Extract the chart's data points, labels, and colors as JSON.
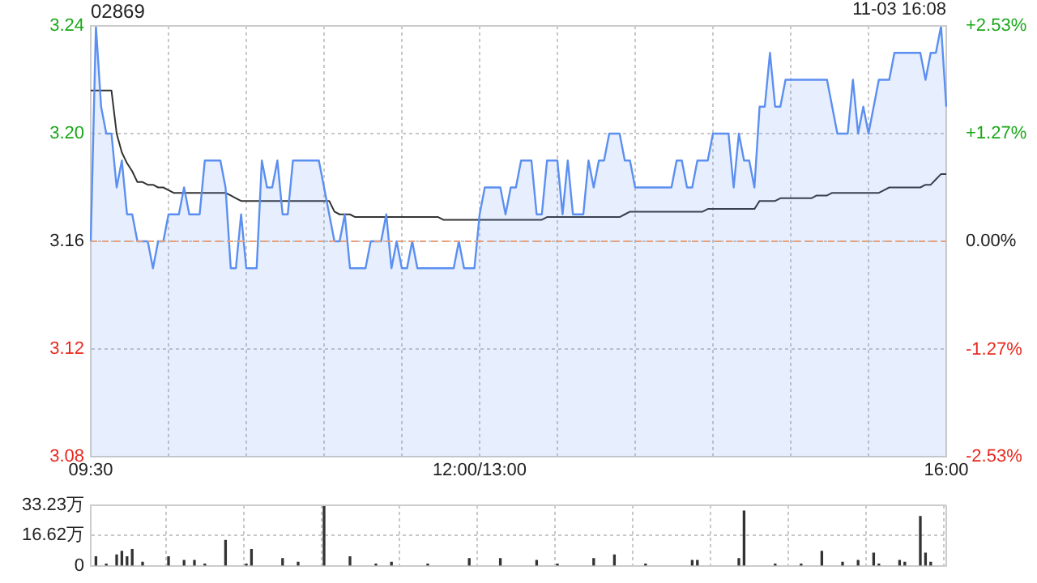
{
  "chart_data": [
    {
      "type": "area",
      "title": "02869",
      "annotations": [
        "11-03 16:08"
      ],
      "legend": false,
      "grid": true,
      "categories": [
        "09:30",
        null,
        null,
        null,
        null,
        null,
        null,
        null,
        null,
        null,
        null,
        null,
        null,
        null,
        null,
        null,
        null,
        null,
        null,
        null,
        null,
        null,
        null,
        null,
        null,
        null,
        null,
        null,
        null,
        null,
        null,
        null,
        null,
        null,
        null,
        null,
        null,
        null,
        null,
        null,
        null,
        null,
        null,
        null,
        null,
        null,
        null,
        null,
        null,
        null,
        null,
        null,
        null,
        null,
        null,
        null,
        null,
        null,
        null,
        null,
        null,
        null,
        null,
        null,
        null,
        null,
        null,
        null,
        null,
        null,
        null,
        null,
        null,
        null,
        null,
        "12:00/13:00",
        null,
        null,
        null,
        null,
        null,
        null,
        null,
        null,
        null,
        null,
        null,
        null,
        null,
        null,
        null,
        null,
        null,
        null,
        null,
        null,
        null,
        null,
        null,
        null,
        null,
        null,
        null,
        null,
        null,
        null,
        null,
        null,
        null,
        null,
        null,
        null,
        null,
        null,
        null,
        null,
        null,
        null,
        null,
        null,
        null,
        null,
        null,
        null,
        null,
        null,
        null,
        null,
        null,
        null,
        null,
        null,
        null,
        null,
        null,
        null,
        null,
        null,
        null,
        null,
        null,
        null,
        null,
        null,
        null,
        null,
        null,
        null,
        null,
        null,
        null,
        null,
        null,
        null,
        null,
        null,
        null,
        null,
        null,
        null,
        null,
        null,
        null,
        null,
        null,
        "16:00"
      ],
      "ylim": [
        3.08,
        3.24
      ],
      "yticks": [
        3.08,
        3.12,
        3.16,
        {
          "value": 3.2,
          "label": "3.20"
        },
        3.24
      ],
      "y2lim": [
        -2.53,
        2.53
      ],
      "y2ticks": [
        {
          "value": -2.53,
          "label": "-2.53%"
        },
        {
          "value": -1.27,
          "label": "-1.27%"
        },
        {
          "value": 0,
          "label": "0.00%"
        },
        {
          "value": 1.27,
          "label": "+1.27%"
        },
        {
          "value": 2.53,
          "label": "+2.53%"
        }
      ],
      "ref_lines": [
        {
          "axis": "y",
          "value": 3.16,
          "color": "#e8a07a",
          "line_style": "dashed"
        }
      ],
      "series": [
        {
          "type": "area",
          "color": "#5b8ff0",
          "values": [
            3.16,
            3.24,
            3.21,
            3.2,
            3.2,
            3.18,
            3.19,
            3.17,
            3.17,
            3.16,
            3.16,
            3.16,
            3.15,
            3.16,
            3.16,
            3.17,
            3.17,
            3.17,
            3.18,
            3.17,
            3.17,
            3.17,
            3.19,
            3.19,
            3.19,
            3.19,
            3.18,
            3.15,
            3.15,
            3.17,
            3.15,
            3.15,
            3.15,
            3.19,
            3.18,
            3.18,
            3.19,
            3.17,
            3.17,
            3.19,
            3.19,
            3.19,
            3.19,
            3.19,
            3.19,
            3.18,
            3.17,
            3.16,
            3.16,
            3.17,
            3.15,
            3.15,
            3.15,
            3.15,
            3.16,
            3.16,
            3.16,
            3.17,
            3.15,
            3.16,
            3.15,
            3.15,
            3.16,
            3.15,
            3.15,
            3.15,
            3.15,
            3.15,
            3.15,
            3.15,
            3.15,
            3.16,
            3.15,
            3.15,
            3.15,
            3.17,
            3.18,
            3.18,
            3.18,
            3.18,
            3.17,
            3.18,
            3.18,
            3.19,
            3.19,
            3.19,
            3.17,
            3.17,
            3.19,
            3.19,
            3.19,
            3.17,
            3.19,
            3.17,
            3.17,
            3.17,
            3.19,
            3.18,
            3.19,
            3.19,
            3.2,
            3.2,
            3.2,
            3.19,
            3.19,
            3.18,
            3.18,
            3.18,
            3.18,
            3.18,
            3.18,
            3.18,
            3.18,
            3.19,
            3.19,
            3.18,
            3.18,
            3.19,
            3.19,
            3.19,
            3.2,
            3.2,
            3.2,
            3.2,
            3.18,
            3.2,
            3.19,
            3.19,
            3.18,
            3.21,
            3.21,
            3.23,
            3.21,
            3.21,
            3.22,
            3.22,
            3.22,
            3.22,
            3.22,
            3.22,
            3.22,
            3.22,
            3.22,
            3.21,
            3.2,
            3.2,
            3.2,
            3.22,
            3.2,
            3.21,
            3.2,
            3.21,
            3.22,
            3.22,
            3.22,
            3.23,
            3.23,
            3.23,
            3.23,
            3.23,
            3.23,
            3.22,
            3.23,
            3.23,
            3.24,
            3.21
          ]
        },
        {
          "type": "line",
          "color": "#333333",
          "values": [
            3.216,
            3.216,
            3.216,
            3.216,
            3.216,
            3.2,
            3.193,
            3.189,
            3.186,
            3.182,
            3.182,
            3.181,
            3.181,
            3.18,
            3.18,
            3.179,
            3.178,
            3.178,
            3.178,
            3.178,
            3.178,
            3.178,
            3.178,
            3.178,
            3.178,
            3.178,
            3.178,
            3.177,
            3.176,
            3.175,
            3.175,
            3.175,
            3.175,
            3.175,
            3.175,
            3.175,
            3.175,
            3.175,
            3.175,
            3.175,
            3.175,
            3.175,
            3.175,
            3.175,
            3.175,
            3.175,
            3.175,
            3.171,
            3.17,
            3.17,
            3.17,
            3.169,
            3.169,
            3.169,
            3.169,
            3.169,
            3.169,
            3.169,
            3.169,
            3.169,
            3.169,
            3.169,
            3.169,
            3.169,
            3.169,
            3.169,
            3.169,
            3.169,
            3.168,
            3.168,
            3.168,
            3.168,
            3.168,
            3.168,
            3.168,
            3.168,
            3.168,
            3.168,
            3.168,
            3.168,
            3.168,
            3.168,
            3.168,
            3.168,
            3.168,
            3.168,
            3.168,
            3.168,
            3.169,
            3.169,
            3.169,
            3.169,
            3.169,
            3.169,
            3.169,
            3.169,
            3.169,
            3.169,
            3.169,
            3.169,
            3.169,
            3.169,
            3.169,
            3.17,
            3.171,
            3.171,
            3.171,
            3.171,
            3.171,
            3.171,
            3.171,
            3.171,
            3.171,
            3.171,
            3.171,
            3.171,
            3.171,
            3.171,
            3.171,
            3.172,
            3.172,
            3.172,
            3.172,
            3.172,
            3.172,
            3.172,
            3.172,
            3.172,
            3.172,
            3.175,
            3.175,
            3.175,
            3.175,
            3.176,
            3.176,
            3.176,
            3.176,
            3.176,
            3.176,
            3.176,
            3.177,
            3.177,
            3.177,
            3.178,
            3.178,
            3.178,
            3.178,
            3.178,
            3.178,
            3.178,
            3.178,
            3.178,
            3.178,
            3.179,
            3.18,
            3.18,
            3.18,
            3.18,
            3.18,
            3.18,
            3.18,
            3.181,
            3.181,
            3.183,
            3.185,
            3.185
          ]
        }
      ]
    },
    {
      "type": "bar",
      "grid": true,
      "legend": false,
      "tick_labels": "y",
      "categories": [
        null,
        null,
        null,
        null,
        null,
        null,
        null,
        null,
        null,
        null,
        null,
        null,
        null,
        null,
        null,
        null,
        null,
        null,
        null,
        null,
        null,
        null,
        null,
        null,
        null,
        null,
        null,
        null,
        null,
        null,
        null,
        null,
        null,
        null,
        null,
        null,
        null,
        null,
        null,
        null,
        null,
        null,
        null,
        null,
        null,
        null,
        null,
        null,
        null,
        null,
        null,
        null,
        null,
        null,
        null,
        null,
        null,
        null,
        null,
        null,
        null,
        null,
        null,
        null,
        null,
        null,
        null,
        null,
        null,
        null,
        null,
        null,
        null,
        null,
        null,
        null,
        null,
        null,
        null,
        null,
        null,
        null,
        null,
        null,
        null,
        null,
        null,
        null,
        null,
        null,
        null,
        null,
        null,
        null,
        null,
        null,
        null,
        null,
        null,
        null,
        null,
        null,
        null,
        null,
        null,
        null,
        null,
        null,
        null,
        null,
        null,
        null,
        null,
        null,
        null,
        null,
        null,
        null,
        null,
        null,
        null,
        null,
        null,
        null,
        null,
        null,
        null,
        null,
        null,
        null,
        null,
        null,
        null,
        null,
        null,
        null,
        null,
        null,
        null,
        null,
        null,
        null,
        null,
        null,
        null,
        null,
        null,
        null,
        null,
        null,
        null,
        null,
        null,
        null,
        null,
        null,
        null,
        null,
        null,
        null,
        null,
        null,
        null,
        null,
        null,
        null
      ],
      "ylim": [
        0,
        33.23
      ],
      "yticks": [
        {
          "value": 0,
          "label": "0"
        },
        {
          "value": 16.62,
          "label": "16.62万"
        },
        {
          "value": 33.23,
          "label": "33.23万"
        }
      ],
      "series": [
        {
          "color": "#333333",
          "values": [
            null,
            5,
            null,
            1,
            null,
            6,
            8,
            5,
            9,
            null,
            2,
            null,
            null,
            null,
            null,
            5,
            null,
            null,
            3,
            null,
            3,
            null,
            1,
            null,
            null,
            null,
            14,
            null,
            null,
            null,
            1,
            9,
            null,
            null,
            null,
            null,
            null,
            4,
            null,
            null,
            2,
            null,
            null,
            null,
            null,
            33,
            null,
            null,
            null,
            null,
            5,
            null,
            null,
            null,
            null,
            1,
            null,
            null,
            2,
            null,
            null,
            null,
            null,
            null,
            null,
            1,
            null,
            null,
            null,
            null,
            null,
            null,
            null,
            4,
            null,
            null,
            null,
            null,
            null,
            4,
            null,
            null,
            null,
            null,
            null,
            null,
            3,
            null,
            null,
            null,
            1,
            null,
            null,
            null,
            null,
            null,
            null,
            4,
            null,
            null,
            null,
            6,
            null,
            null,
            null,
            null,
            null,
            1,
            null,
            null,
            null,
            null,
            null,
            null,
            null,
            null,
            3,
            3,
            null,
            null,
            null,
            null,
            null,
            null,
            null,
            4,
            30,
            null,
            null,
            null,
            null,
            null,
            1,
            null,
            null,
            null,
            null,
            1,
            null,
            null,
            null,
            8,
            null,
            null,
            null,
            2,
            null,
            null,
            3,
            null,
            null,
            7,
            1,
            null,
            null,
            null,
            3,
            2,
            null,
            null,
            27,
            7,
            2,
            null,
            null,
            null
          ]
        }
      ]
    }
  ]
}
